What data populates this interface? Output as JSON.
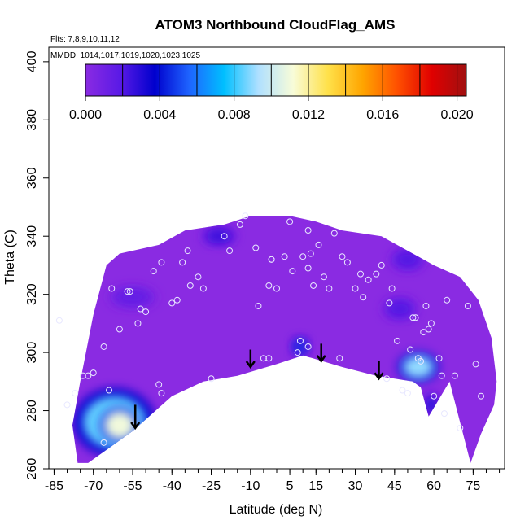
{
  "chart_data": {
    "type": "heatmap",
    "title": "ATOM3 Northbound CloudFlag_AMS",
    "notes": {
      "flights": "Flts: 7,8,9,10,11,12",
      "dates": "MMDD: 1014,1017,1019,1020,1023,1025"
    },
    "xlabel": "Latitude (deg N)",
    "ylabel": "Theta (C)",
    "xlim": [
      -87,
      87
    ],
    "ylim": [
      260,
      405
    ],
    "x_ticks": [
      -85,
      -70,
      -55,
      -40,
      -25,
      -10,
      5,
      15,
      30,
      45,
      60,
      75
    ],
    "y_ticks": [
      260,
      280,
      300,
      320,
      340,
      360,
      380,
      400
    ],
    "colorbar": {
      "min": 0,
      "max": 0.0205,
      "ticks": [
        "0.000",
        "0.004",
        "0.008",
        "0.012",
        "0.016",
        "0.020"
      ],
      "tick_values": [
        0.0,
        0.004,
        0.008,
        0.012,
        0.016,
        0.02
      ],
      "colors": [
        "#8a2be2",
        "#5a1ae6",
        "#0000cd",
        "#1e64ff",
        "#00bfff",
        "#b0e0ff",
        "#f8fcd8",
        "#ffe14a",
        "#ffa500",
        "#ff5000",
        "#e00000",
        "#a01010"
      ]
    },
    "field": {
      "background_color": "#8a2be2",
      "domain_upper": [
        [
          -75,
          290
        ],
        [
          -70,
          313
        ],
        [
          -65,
          330
        ],
        [
          -60,
          334
        ],
        [
          -45,
          337
        ],
        [
          -35,
          342
        ],
        [
          -20,
          344
        ],
        [
          -10,
          347
        ],
        [
          5,
          347
        ],
        [
          15,
          345
        ],
        [
          25,
          342
        ],
        [
          40,
          340
        ],
        [
          50,
          335
        ],
        [
          60,
          330
        ],
        [
          70,
          326
        ],
        [
          77,
          318
        ],
        [
          82,
          305
        ],
        [
          84,
          290
        ],
        [
          83,
          282
        ],
        [
          78,
          272
        ],
        [
          74,
          262
        ]
      ],
      "domain_lower": [
        [
          74,
          262
        ],
        [
          66,
          290
        ],
        [
          62,
          284
        ],
        [
          58,
          278
        ],
        [
          55,
          288
        ],
        [
          52,
          290
        ],
        [
          38,
          292
        ],
        [
          25,
          295
        ],
        [
          10,
          299
        ],
        [
          0,
          296
        ],
        [
          -15,
          292
        ],
        [
          -28,
          290
        ],
        [
          -40,
          285
        ],
        [
          -55,
          273
        ],
        [
          -72,
          262
        ],
        [
          -76,
          262
        ],
        [
          -78,
          275
        ]
      ],
      "blobs": [
        {
          "x": -62,
          "y": 276,
          "rx": 12,
          "ry": 9,
          "level": 0.0085
        },
        {
          "x": -60,
          "y": 275,
          "rx": 6,
          "ry": 5,
          "level": 0.011
        },
        {
          "x": 54,
          "y": 295,
          "rx": 6,
          "ry": 4,
          "level": 0.009
        },
        {
          "x": 9,
          "y": 302,
          "rx": 2.5,
          "ry": 2.5,
          "level": 0.0045
        },
        {
          "x": 59,
          "y": 282,
          "rx": 2,
          "ry": 3,
          "level": 0.003
        },
        {
          "x": -22,
          "y": 340,
          "rx": 5,
          "ry": 2.5,
          "level": 0.0025
        },
        {
          "x": -55,
          "y": 319,
          "rx": 7,
          "ry": 3,
          "level": 0.0015
        },
        {
          "x": 47,
          "y": 315,
          "rx": 5,
          "ry": 3,
          "level": 0.002
        },
        {
          "x": 50,
          "y": 332,
          "rx": 5,
          "ry": 3,
          "level": 0.002
        }
      ]
    },
    "samples": [
      [
        -83,
        311
      ],
      [
        -77,
        286
      ],
      [
        -74,
        292
      ],
      [
        -72,
        292
      ],
      [
        -70,
        293
      ],
      [
        -66,
        302
      ],
      [
        -63,
        322
      ],
      [
        -60,
        308
      ],
      [
        -57,
        321
      ],
      [
        -56,
        321
      ],
      [
        -53,
        310
      ],
      [
        -52,
        315
      ],
      [
        -50,
        314
      ],
      [
        -47,
        328
      ],
      [
        -44,
        331
      ],
      [
        -40,
        317
      ],
      [
        -38,
        318
      ],
      [
        -36,
        331
      ],
      [
        -34,
        335
      ],
      [
        -33,
        323
      ],
      [
        -30,
        326
      ],
      [
        -28,
        322
      ],
      [
        -25,
        291
      ],
      [
        -20,
        340
      ],
      [
        -18,
        335
      ],
      [
        -14,
        344
      ],
      [
        -12,
        347
      ],
      [
        -8,
        336
      ],
      [
        -7,
        316
      ],
      [
        -5,
        298
      ],
      [
        -3,
        323
      ],
      [
        -2,
        332
      ],
      [
        0,
        322
      ],
      [
        3,
        333
      ],
      [
        5,
        345
      ],
      [
        6,
        328
      ],
      [
        8,
        300
      ],
      [
        9,
        304
      ],
      [
        10,
        333
      ],
      [
        12,
        342
      ],
      [
        12,
        329
      ],
      [
        13,
        334
      ],
      [
        14,
        323
      ],
      [
        16,
        337
      ],
      [
        18,
        326
      ],
      [
        20,
        322
      ],
      [
        22,
        341
      ],
      [
        25,
        333
      ],
      [
        27,
        331
      ],
      [
        30,
        322
      ],
      [
        32,
        327
      ],
      [
        33,
        319
      ],
      [
        35,
        325
      ],
      [
        38,
        327
      ],
      [
        40,
        330
      ],
      [
        43,
        317
      ],
      [
        44,
        322
      ],
      [
        46,
        304
      ],
      [
        48,
        287
      ],
      [
        50,
        286
      ],
      [
        51,
        301
      ],
      [
        52,
        312
      ],
      [
        53,
        312
      ],
      [
        54,
        298
      ],
      [
        55,
        297
      ],
      [
        56,
        307
      ],
      [
        57,
        316
      ],
      [
        58,
        308
      ],
      [
        59,
        310
      ],
      [
        60,
        285
      ],
      [
        62,
        298
      ],
      [
        63,
        292
      ],
      [
        64,
        279
      ],
      [
        65,
        318
      ],
      [
        68,
        292
      ],
      [
        70,
        274
      ],
      [
        73,
        316
      ],
      [
        76,
        296
      ],
      [
        78,
        285
      ],
      [
        -80,
        282
      ],
      [
        -66,
        269
      ],
      [
        -64,
        287
      ],
      [
        -45,
        289
      ],
      [
        -3,
        298
      ],
      [
        12,
        302
      ],
      [
        24,
        298
      ],
      [
        42,
        291
      ],
      [
        -2,
        332
      ],
      [
        -44,
        286
      ]
    ],
    "arrows": [
      {
        "x": -54,
        "y_top": 282,
        "y_bottom": 274
      },
      {
        "x": -10,
        "y_top": 301,
        "y_bottom": 295
      },
      {
        "x": 17,
        "y_top": 303,
        "y_bottom": 297
      },
      {
        "x": 39,
        "y_top": 297,
        "y_bottom": 291
      }
    ]
  }
}
